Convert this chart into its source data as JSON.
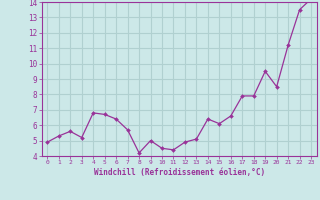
{
  "x": [
    0,
    1,
    2,
    3,
    4,
    5,
    6,
    7,
    8,
    9,
    10,
    11,
    12,
    13,
    14,
    15,
    16,
    17,
    18,
    19,
    20,
    21,
    22,
    23
  ],
  "y": [
    4.9,
    5.3,
    5.6,
    5.2,
    6.8,
    6.7,
    6.4,
    5.7,
    4.2,
    5.0,
    4.5,
    4.4,
    4.9,
    5.1,
    6.4,
    6.1,
    6.6,
    7.9,
    7.9,
    9.5,
    8.5,
    11.2,
    13.5,
    14.2
  ],
  "line_color": "#993399",
  "marker_color": "#993399",
  "bg_color": "#cce8e8",
  "grid_color": "#b0d0d0",
  "xlabel": "Windchill (Refroidissement éolien,°C)",
  "xlabel_color": "#993399",
  "tick_color": "#993399",
  "spine_color": "#993399",
  "ylim": [
    4,
    14
  ],
  "xlim": [
    -0.5,
    23.5
  ],
  "yticks": [
    4,
    5,
    6,
    7,
    8,
    9,
    10,
    11,
    12,
    13,
    14
  ],
  "xticks": [
    0,
    1,
    2,
    3,
    4,
    5,
    6,
    7,
    8,
    9,
    10,
    11,
    12,
    13,
    14,
    15,
    16,
    17,
    18,
    19,
    20,
    21,
    22,
    23
  ]
}
